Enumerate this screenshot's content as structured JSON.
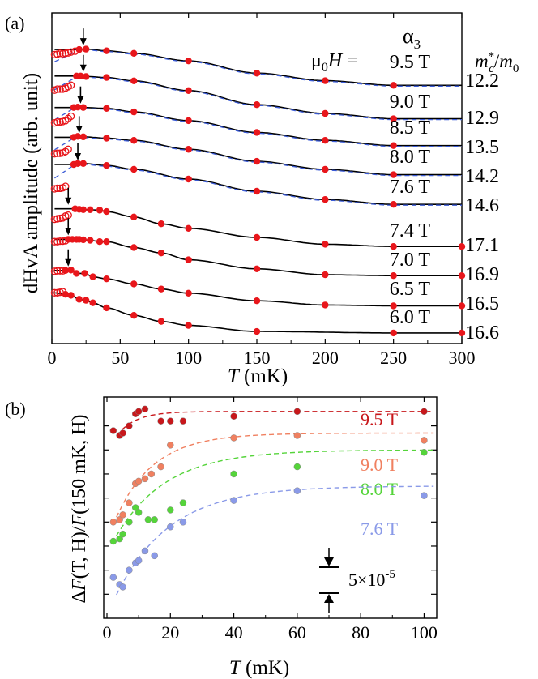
{
  "colors": {
    "fit_line": "#000000",
    "dashed_fit": "#3b5bd6",
    "filled_point": "#e8161b",
    "open_point": "#e8161b",
    "series_9_5": "#c8171b",
    "series_9_0": "#f08060",
    "series_8_0": "#55d43a",
    "series_7_6": "#8a9ae8"
  },
  "chart_data": [
    {
      "panel_label": "(a)",
      "type": "line",
      "title": "",
      "xlabel_var": "T",
      "xlabel_unit": "(mK)",
      "ylabel": "dHvA amplitude (arb. unit)",
      "xlim": [
        0,
        300
      ],
      "xticks": [
        "0",
        "50",
        "100",
        "150",
        "200",
        "250",
        "300"
      ],
      "branch_label": "α",
      "branch_sub": "3",
      "field_prefix": "μ",
      "field_prefix_sub": "0",
      "field_var": "H",
      "field_eq": " = ",
      "mass_header_var": "m",
      "mass_header_sub": "c",
      "mass_header_sup": "*",
      "mass_header_div": "/",
      "mass_header_den": "m",
      "mass_header_den_sub": "0",
      "curves": [
        {
          "field": "9.5 T",
          "mass": "12.2",
          "arrow_T": 23,
          "filled": [
            [
              20,
              0.94
            ],
            [
              25,
              0.95
            ],
            [
              40,
              0.91
            ],
            [
              60,
              0.85
            ],
            [
              100,
              0.67
            ],
            [
              150,
              0.38
            ],
            [
              200,
              0.2
            ],
            [
              250,
              0.09
            ]
          ],
          "open": [
            [
              2,
              0.82
            ],
            [
              4,
              0.83
            ],
            [
              6,
              0.85
            ],
            [
              8,
              0.84
            ],
            [
              10,
              0.85
            ],
            [
              12,
              0.86
            ],
            [
              14,
              0.88
            ],
            [
              17,
              0.9
            ]
          ]
        },
        {
          "field": "9.0 T",
          "mass": "12.9",
          "arrow_T": 23,
          "filled": [
            [
              18,
              0.97
            ],
            [
              21,
              0.97
            ],
            [
              25,
              0.96
            ],
            [
              40,
              0.94
            ],
            [
              60,
              0.87
            ],
            [
              100,
              0.67
            ],
            [
              150,
              0.38
            ],
            [
              200,
              0.2
            ],
            [
              250,
              0.09
            ]
          ],
          "open": [
            [
              2,
              0.68
            ],
            [
              4,
              0.7
            ],
            [
              6,
              0.7
            ],
            [
              8,
              0.7
            ],
            [
              10,
              0.72
            ],
            [
              12,
              0.75
            ],
            [
              14,
              0.78
            ]
          ]
        },
        {
          "field": "8.5 T",
          "mass": "13.5",
          "arrow_T": 21,
          "filled": [
            [
              16,
              0.95
            ],
            [
              19,
              0.96
            ],
            [
              23,
              0.95
            ],
            [
              40,
              0.93
            ],
            [
              60,
              0.85
            ],
            [
              100,
              0.65
            ],
            [
              150,
              0.38
            ],
            [
              200,
              0.2
            ],
            [
              250,
              0.08
            ]
          ],
          "open": [
            [
              2,
              0.6
            ],
            [
              4,
              0.62
            ],
            [
              6,
              0.62
            ],
            [
              8,
              0.63
            ],
            [
              10,
              0.65
            ],
            [
              12,
              0.7
            ],
            [
              14,
              0.75
            ]
          ]
        },
        {
          "field": "8.0 T",
          "mass": "14.2",
          "arrow_T": 20,
          "filled": [
            [
              16,
              0.92
            ],
            [
              19,
              0.94
            ],
            [
              23,
              0.93
            ],
            [
              40,
              0.9
            ],
            [
              60,
              0.85
            ],
            [
              100,
              0.65
            ],
            [
              150,
              0.38
            ],
            [
              200,
              0.2
            ],
            [
              250,
              0.08
            ]
          ],
          "open": [
            [
              2,
              0.55
            ],
            [
              4,
              0.56
            ],
            [
              6,
              0.56
            ],
            [
              8,
              0.57
            ],
            [
              10,
              0.6
            ],
            [
              12,
              0.65
            ]
          ]
        },
        {
          "field": "7.6 T",
          "mass": "14.6",
          "arrow_T": 19,
          "filled": [
            [
              16,
              0.9
            ],
            [
              19,
              0.92
            ],
            [
              23,
              0.92
            ],
            [
              40,
              0.88
            ],
            [
              60,
              0.8
            ],
            [
              100,
              0.6
            ],
            [
              150,
              0.35
            ],
            [
              200,
              0.18
            ],
            [
              250,
              0.08
            ]
          ],
          "open": [
            [
              2,
              0.4
            ],
            [
              4,
              0.41
            ],
            [
              6,
              0.41
            ],
            [
              8,
              0.42
            ],
            [
              10,
              0.45
            ]
          ]
        },
        {
          "field": "7.4 T",
          "mass": "17.1",
          "arrow_T": 12,
          "filled": [
            [
              17,
              0.88
            ],
            [
              20,
              0.87
            ],
            [
              23,
              0.86
            ],
            [
              28,
              0.86
            ],
            [
              35,
              0.85
            ],
            [
              40,
              0.82
            ],
            [
              60,
              0.7
            ],
            [
              80,
              0.55
            ],
            [
              100,
              0.45
            ],
            [
              150,
              0.25
            ],
            [
              200,
              0.1
            ],
            [
              250,
              0.05
            ],
            [
              300,
              0.05
            ]
          ],
          "open": [
            [
              2,
              0.65
            ],
            [
              4,
              0.66
            ],
            [
              6,
              0.67
            ],
            [
              8,
              0.68
            ],
            [
              10,
              0.72
            ],
            [
              12,
              0.74
            ]
          ]
        },
        {
          "field": "7.0 T",
          "mass": "16.9",
          "arrow_T": 12,
          "filled": [
            [
              12,
              0.85
            ],
            [
              15,
              0.85
            ],
            [
              18,
              0.85
            ],
            [
              20,
              0.85
            ],
            [
              23,
              0.84
            ],
            [
              28,
              0.83
            ],
            [
              35,
              0.8
            ],
            [
              40,
              0.8
            ],
            [
              60,
              0.67
            ],
            [
              80,
              0.55
            ],
            [
              100,
              0.4
            ],
            [
              150,
              0.2
            ],
            [
              200,
              0.07
            ],
            [
              250,
              0.05
            ],
            [
              300,
              0.05
            ]
          ],
          "open": [
            [
              2,
              0.8
            ],
            [
              4,
              0.8
            ],
            [
              6,
              0.81
            ],
            [
              8,
              0.81
            ],
            [
              10,
              0.82
            ]
          ]
        },
        {
          "field": "6.5 T",
          "mass": "16.5",
          "arrow_T": 12,
          "filled": [
            [
              10,
              0.87
            ],
            [
              14,
              0.88
            ],
            [
              18,
              0.8
            ],
            [
              24,
              0.8
            ],
            [
              30,
              0.72
            ],
            [
              40,
              0.67
            ],
            [
              60,
              0.55
            ],
            [
              80,
              0.43
            ],
            [
              100,
              0.33
            ],
            [
              150,
              0.15
            ],
            [
              200,
              0.05
            ],
            [
              250,
              0.03
            ],
            [
              300,
              0.03
            ]
          ],
          "open": [
            [
              2,
              0.85
            ],
            [
              4,
              0.86
            ],
            [
              6,
              0.86
            ],
            [
              8,
              0.86
            ]
          ]
        },
        {
          "field": "6.0 T",
          "mass": "16.6",
          "arrow_T": null,
          "filled": [
            [
              10,
              0.82
            ],
            [
              14,
              0.8
            ],
            [
              20,
              0.72
            ],
            [
              25,
              0.7
            ],
            [
              30,
              0.65
            ],
            [
              40,
              0.55
            ],
            [
              60,
              0.4
            ],
            [
              80,
              0.28
            ],
            [
              100,
              0.2
            ],
            [
              150,
              0.08
            ],
            [
              250,
              0.05
            ],
            [
              300,
              0.05
            ]
          ],
          "open": [
            [
              2,
              0.85
            ],
            [
              4,
              0.85
            ],
            [
              6,
              0.86
            ],
            [
              8,
              0.87
            ]
          ]
        }
      ]
    },
    {
      "panel_label": "(b)",
      "type": "scatter",
      "xlabel_var": "T",
      "xlabel_unit": "(mK)",
      "ylabel_delta": "Δ",
      "ylabel_F": "F",
      "ylabel_args": "(T, H)",
      "ylabel_slash": "/",
      "ylabel_F2": "F",
      "ylabel_args2": "(150 mK, H)",
      "xlim": [
        0,
        105
      ],
      "xticks": [
        "0",
        "20",
        "40",
        "60",
        "80",
        "100"
      ],
      "ylim": [
        0,
        9.2
      ],
      "scale_bar_mantissa": "5×10",
      "scale_bar_exp": "-5",
      "series": [
        {
          "name": "9.0 T",
          "label": "9.0 T",
          "color_key": "series_9_0",
          "points": [
            [
              2,
              4.0
            ],
            [
              4,
              4.1
            ],
            [
              5,
              4.3
            ],
            [
              7,
              4.8
            ],
            [
              9,
              5.6
            ],
            [
              10,
              5.7
            ],
            [
              12,
              5.8
            ],
            [
              14,
              6.0
            ],
            [
              17,
              6.3
            ],
            [
              20,
              7.2
            ],
            [
              40,
              7.5
            ],
            [
              60,
              7.6
            ],
            [
              100,
              7.4
            ]
          ],
          "fit": {
            "A": 7.7,
            "B": 3.8,
            "tau": 12
          }
        },
        {
          "name": "9.5 T",
          "label": "9.5 T",
          "color_key": "series_9_5",
          "points": [
            [
              2,
              7.8
            ],
            [
              4,
              7.6
            ],
            [
              5,
              7.7
            ],
            [
              7,
              8.0
            ],
            [
              9,
              8.5
            ],
            [
              10,
              8.6
            ],
            [
              12,
              8.7
            ],
            [
              17,
              8.2
            ],
            [
              20,
              8.2
            ],
            [
              24,
              8.2
            ],
            [
              40,
              8.4
            ],
            [
              60,
              8.6
            ],
            [
              100,
              8.6
            ]
          ],
          "fit": {
            "A": 8.6,
            "B": 1.2,
            "tau": 6
          }
        },
        {
          "name": "8.0 T",
          "label": "8.0 T",
          "color_key": "series_8_0",
          "points": [
            [
              2,
              3.2
            ],
            [
              4,
              3.3
            ],
            [
              5,
              3.5
            ],
            [
              7,
              4.0
            ],
            [
              9,
              4.6
            ],
            [
              10,
              4.4
            ],
            [
              13,
              4.1
            ],
            [
              15,
              4.1
            ],
            [
              20,
              4.5
            ],
            [
              24,
              4.8
            ],
            [
              40,
              6.0
            ],
            [
              60,
              6.3
            ],
            [
              100,
              6.9
            ]
          ],
          "fit": {
            "A": 7.0,
            "B": 3.8,
            "tau": 16
          }
        },
        {
          "name": "7.6 T",
          "label": "7.6 T",
          "color_key": "series_7_6",
          "points": [
            [
              2,
              1.7
            ],
            [
              4,
              1.4
            ],
            [
              5,
              1.3
            ],
            [
              7,
              2.0
            ],
            [
              9,
              2.3
            ],
            [
              10,
              2.4
            ],
            [
              12,
              2.8
            ],
            [
              15,
              2.6
            ],
            [
              20,
              3.8
            ],
            [
              24,
              4.0
            ],
            [
              40,
              4.9
            ],
            [
              60,
              5.3
            ],
            [
              100,
              5.1
            ]
          ],
          "fit": {
            "A": 5.5,
            "B": 4.8,
            "tau": 17
          }
        }
      ]
    }
  ]
}
